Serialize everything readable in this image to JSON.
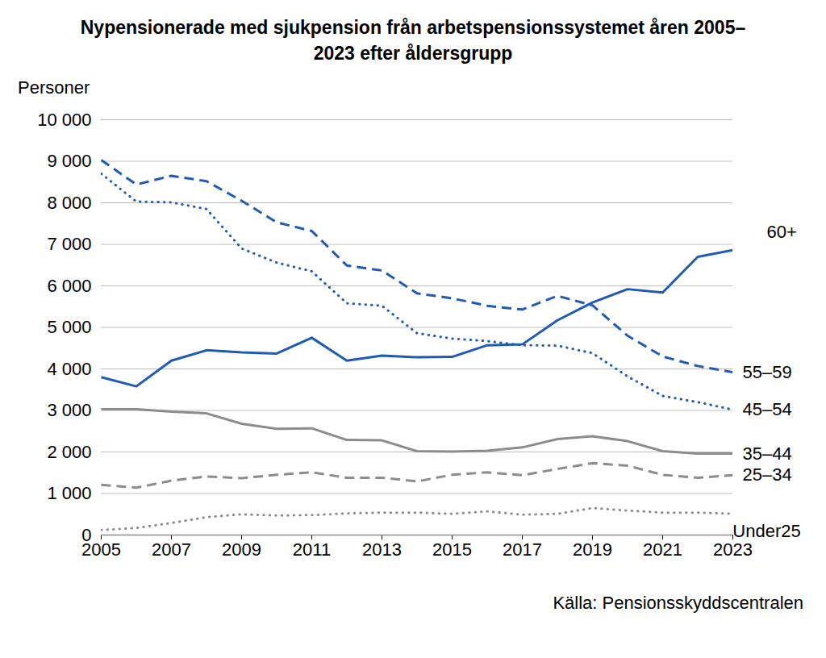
{
  "chart_data": {
    "type": "line",
    "title": "Nypensionerade med sjukpension från arbetspensionssystemet åren 2005–2023 efter åldersgrupp",
    "y_label": "Personer",
    "source": "Källa: Pensionsskyddscentralen",
    "x": [
      2005,
      2006,
      2007,
      2008,
      2009,
      2010,
      2011,
      2012,
      2013,
      2014,
      2015,
      2016,
      2017,
      2018,
      2019,
      2020,
      2021,
      2022,
      2023
    ],
    "xlim": [
      2005,
      2023
    ],
    "xticks": [
      2005,
      2007,
      2009,
      2011,
      2013,
      2015,
      2017,
      2019,
      2021,
      2023
    ],
    "ylim": [
      0,
      10000
    ],
    "yticks": [
      0,
      {
        "value": 1000,
        "label": "1 000"
      },
      {
        "value": 2000,
        "label": "2 000"
      },
      {
        "value": 3000,
        "label": "3 000"
      },
      {
        "value": 4000,
        "label": "4 000"
      },
      {
        "value": 5000,
        "label": "5 000"
      },
      {
        "value": 6000,
        "label": "6 000"
      },
      {
        "value": 7000,
        "label": "7 000"
      },
      {
        "value": 8000,
        "label": "8 000"
      },
      {
        "value": 9000,
        "label": "9 000"
      },
      {
        "value": 10000,
        "label": "10 000"
      }
    ],
    "grid": true,
    "series": [
      {
        "name": "60+",
        "color": "#1f5bb5",
        "line_style": "solid",
        "values": [
          3800,
          3580,
          4200,
          4450,
          4400,
          4370,
          4750,
          4200,
          4320,
          4280,
          4290,
          4570,
          4590,
          5170,
          5600,
          5920,
          5840,
          6700,
          6860
        ]
      },
      {
        "name": "55–59",
        "color": "#1f5bb5",
        "line_style": "dashed",
        "values": [
          9030,
          8440,
          8650,
          8520,
          8050,
          7530,
          7320,
          6490,
          6370,
          5820,
          5700,
          5520,
          5430,
          5760,
          5530,
          4800,
          4300,
          4070,
          3920
        ]
      },
      {
        "name": "45–54",
        "color": "#1f5bb5",
        "line_style": "dotted",
        "values": [
          8700,
          8030,
          8010,
          7850,
          6900,
          6560,
          6350,
          5580,
          5520,
          4860,
          4730,
          4670,
          4570,
          4560,
          4380,
          3820,
          3350,
          3200,
          3020
        ]
      },
      {
        "name": "35–44",
        "color": "#8c8c8c",
        "line_style": "solid",
        "values": [
          3030,
          3030,
          2970,
          2930,
          2680,
          2560,
          2570,
          2290,
          2280,
          2020,
          2010,
          2030,
          2110,
          2310,
          2380,
          2260,
          2020,
          1960,
          1960
        ]
      },
      {
        "name": "25–34",
        "color": "#8c8c8c",
        "line_style": "dashed",
        "values": [
          1210,
          1140,
          1310,
          1410,
          1370,
          1450,
          1510,
          1380,
          1380,
          1290,
          1450,
          1510,
          1440,
          1590,
          1730,
          1670,
          1450,
          1380,
          1440
        ]
      },
      {
        "name": "Under25",
        "color": "#8c8c8c",
        "line_style": "dotted",
        "values": [
          120,
          170,
          290,
          430,
          500,
          470,
          480,
          520,
          540,
          540,
          510,
          570,
          490,
          510,
          650,
          590,
          540,
          540,
          510
        ]
      }
    ]
  }
}
